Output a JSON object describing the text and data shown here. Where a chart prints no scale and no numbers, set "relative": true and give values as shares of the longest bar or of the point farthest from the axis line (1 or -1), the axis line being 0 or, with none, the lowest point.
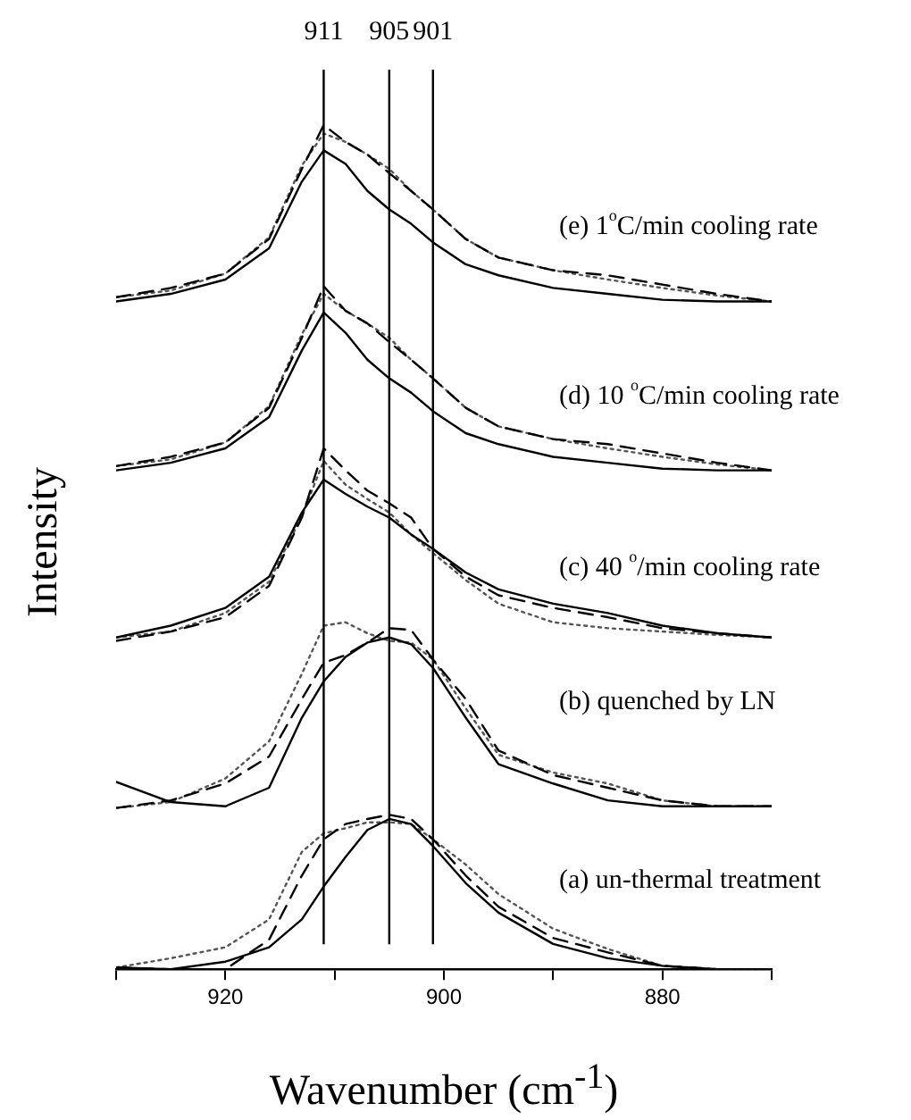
{
  "chart_data": {
    "type": "line",
    "relative": true,
    "xlabel": "Wavenumber (cm$^{-1}$)",
    "ylabel": "Intensity",
    "legend": false,
    "grid": false,
    "xlim": [
      930,
      870
    ],
    "xticks": [
      {
        "value": 930,
        "label": null
      },
      920,
      {
        "value": 910,
        "label": null
      },
      900,
      {
        "value": 890,
        "label": null
      },
      880,
      {
        "value": 870,
        "label": null
      }
    ],
    "x": [
      930,
      925,
      920,
      916,
      913,
      911,
      909,
      907,
      905,
      903,
      901,
      898,
      895,
      890,
      885,
      880,
      875,
      870
    ],
    "series": [
      {
        "color": "#000000",
        "line_style": "solid",
        "values": [
          0.002,
          0.0,
          0.009,
          0.026,
          0.059,
          0.098,
          0.133,
          0.165,
          0.178,
          0.172,
          0.146,
          0.102,
          0.067,
          0.03,
          0.013,
          0.004,
          0.0,
          0.0
        ]
      },
      {
        "color": "#000000",
        "line_style": "dashed",
        "values": [
          0.002,
          0.0,
          0.0,
          0.035,
          0.111,
          0.154,
          0.172,
          0.178,
          0.183,
          0.178,
          0.154,
          0.111,
          0.074,
          0.037,
          0.02,
          0.004,
          0.0,
          0.0
        ]
      },
      {
        "color": "#555555",
        "line_style": "dotted",
        "values": [
          0.002,
          0.013,
          0.026,
          0.059,
          0.139,
          0.161,
          0.167,
          0.174,
          0.174,
          0.172,
          0.154,
          0.124,
          0.089,
          0.048,
          0.024,
          0.004,
          0.0,
          0.0
        ]
      },
      {
        "color": "#000000",
        "line_style": "solid",
        "values": [
          0.222,
          0.198,
          0.193,
          0.215,
          0.298,
          0.341,
          0.37,
          0.387,
          0.393,
          0.385,
          0.357,
          0.298,
          0.243,
          0.22,
          0.2,
          0.193,
          0.193,
          0.193
        ]
      },
      {
        "color": "#000000",
        "line_style": "dashed",
        "values": [
          0.191,
          0.2,
          0.22,
          0.252,
          0.32,
          0.363,
          0.372,
          0.387,
          0.404,
          0.402,
          0.367,
          0.32,
          0.259,
          0.23,
          0.215,
          0.2,
          0.193,
          0.193
        ]
      },
      {
        "color": "#555555",
        "line_style": "dotted",
        "values": [
          0.191,
          0.198,
          0.226,
          0.27,
          0.35,
          0.407,
          0.411,
          0.398,
          0.389,
          0.387,
          0.367,
          0.309,
          0.254,
          0.233,
          0.22,
          0.2,
          0.193,
          0.193
        ]
      },
      {
        "color": "#000000",
        "line_style": "solid",
        "values": [
          0.393,
          0.407,
          0.428,
          0.465,
          0.541,
          0.58,
          0.563,
          0.548,
          0.535,
          0.515,
          0.498,
          0.47,
          0.45,
          0.433,
          0.422,
          0.407,
          0.398,
          0.393
        ]
      },
      {
        "color": "#000000",
        "line_style": "dashed",
        "values": [
          0.389,
          0.4,
          0.417,
          0.454,
          0.535,
          0.617,
          0.591,
          0.567,
          0.552,
          0.535,
          0.498,
          0.465,
          0.443,
          0.428,
          0.417,
          0.404,
          0.398,
          0.393
        ]
      },
      {
        "color": "#555555",
        "line_style": "dotted",
        "values": [
          0.393,
          0.4,
          0.422,
          0.459,
          0.537,
          0.602,
          0.574,
          0.557,
          0.541,
          0.515,
          0.493,
          0.461,
          0.433,
          0.411,
          0.404,
          0.4,
          0.396,
          0.393
        ]
      },
      {
        "color": "#000000",
        "line_style": "solid",
        "values": [
          0.591,
          0.6,
          0.617,
          0.654,
          0.733,
          0.778,
          0.754,
          0.722,
          0.7,
          0.683,
          0.661,
          0.635,
          0.622,
          0.607,
          0.6,
          0.593,
          0.591,
          0.591
        ]
      },
      {
        "color": "#000000",
        "line_style": "dashed",
        "values": [
          0.596,
          0.607,
          0.624,
          0.665,
          0.748,
          0.809,
          0.78,
          0.765,
          0.743,
          0.722,
          0.7,
          0.665,
          0.643,
          0.628,
          0.622,
          0.611,
          0.6,
          0.591
        ]
      },
      {
        "color": "#555555",
        "line_style": "dotted",
        "values": [
          0.596,
          0.604,
          0.624,
          0.667,
          0.752,
          0.8,
          0.78,
          0.765,
          0.748,
          0.722,
          0.7,
          0.665,
          0.643,
          0.628,
          0.617,
          0.607,
          0.598,
          0.591
        ]
      },
      {
        "color": "#000000",
        "line_style": "solid",
        "values": [
          0.791,
          0.8,
          0.817,
          0.854,
          0.933,
          0.97,
          0.954,
          0.922,
          0.9,
          0.883,
          0.861,
          0.835,
          0.822,
          0.807,
          0.8,
          0.793,
          0.791,
          0.791
        ]
      },
      {
        "color": "#000000",
        "line_style": "dashed",
        "values": [
          0.796,
          0.807,
          0.824,
          0.865,
          0.948,
          1.0,
          0.98,
          0.965,
          0.943,
          0.922,
          0.9,
          0.865,
          0.843,
          0.828,
          0.822,
          0.811,
          0.8,
          0.791
        ]
      },
      {
        "color": "#555555",
        "line_style": "dotted",
        "values": [
          0.796,
          0.804,
          0.824,
          0.867,
          0.952,
          0.99,
          0.98,
          0.965,
          0.948,
          0.922,
          0.9,
          0.865,
          0.843,
          0.828,
          0.817,
          0.807,
          0.798,
          0.791
        ]
      }
    ],
    "ref_lines": [
      {
        "axis": "x",
        "value": 911,
        "label": "911"
      },
      {
        "axis": "x",
        "value": 905,
        "label": "905"
      },
      {
        "axis": "x",
        "value": 901,
        "label": "901"
      }
    ],
    "annotations": [
      "(e) 1$^{o}$C/min cooling rate",
      "(d) 10 $^{o}$C/min cooling rate",
      "(c) 40 $^{o}$/min cooling rate",
      "(b) quenched by LN",
      "(a) un-thermal treatment"
    ]
  }
}
